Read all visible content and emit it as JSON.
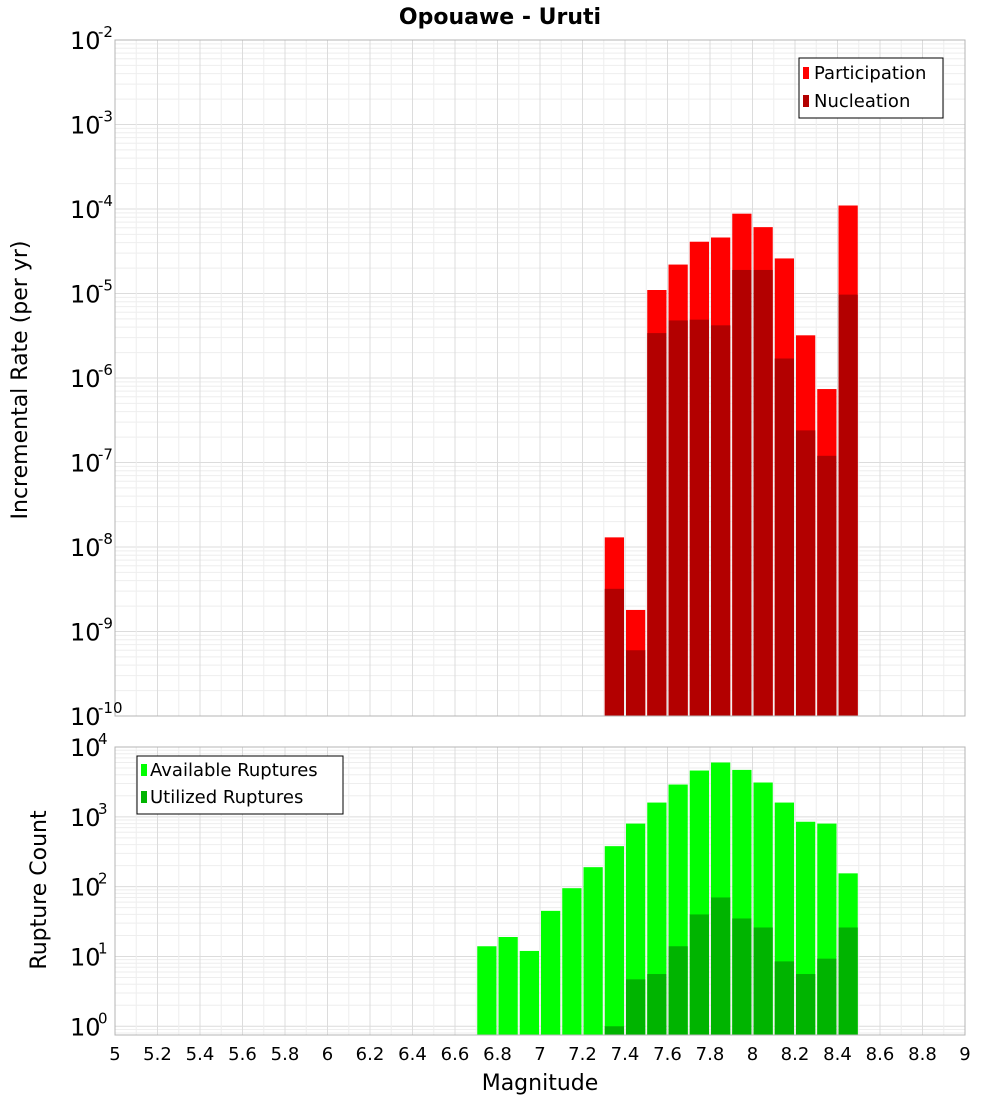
{
  "chart_data": [
    {
      "type": "bar",
      "title": "Opouawe - Uruti",
      "xlabel": "Magnitude",
      "ylabel": "Incremental Rate (per yr)",
      "yscale": "log",
      "ylim": [
        1e-10,
        0.01
      ],
      "xlim": [
        5,
        9
      ],
      "y_tick_exponents": [
        "-10",
        "-9",
        "-8",
        "-7",
        "-6",
        "-5",
        "-4",
        "-3",
        "-2"
      ],
      "legend_position": "top-right",
      "bar_width": 0.1,
      "x": [
        7.35,
        7.45,
        7.55,
        7.65,
        7.75,
        7.85,
        7.95,
        8.05,
        8.15,
        8.25,
        8.35,
        8.45
      ],
      "series": [
        {
          "name": "Participation",
          "color": "#ff0000",
          "values": [
            1.3e-08,
            1.8e-09,
            1.1e-05,
            2.2e-05,
            4.1e-05,
            4.6e-05,
            8.8e-05,
            6.1e-05,
            2.6e-05,
            3.2e-06,
            7.4e-07,
            0.00011
          ]
        },
        {
          "name": "Nucleation",
          "color": "#b30000",
          "values": [
            3.2e-09,
            6e-10,
            3.4e-06,
            4.8e-06,
            4.9e-06,
            4.2e-06,
            1.9e-05,
            1.9e-05,
            1.7e-06,
            2.4e-07,
            1.2e-07,
            9.7e-06
          ]
        }
      ]
    },
    {
      "type": "bar",
      "xlabel": "Magnitude",
      "ylabel": "Rupture Count",
      "yscale": "log",
      "ylim": [
        0.75,
        10000
      ],
      "xlim": [
        5,
        9
      ],
      "x_ticks": [
        "5",
        "5.2",
        "5.4",
        "5.6",
        "5.8",
        "6",
        "6.2",
        "6.4",
        "6.6",
        "6.8",
        "7",
        "7.2",
        "7.4",
        "7.6",
        "7.8",
        "8",
        "8.2",
        "8.4",
        "8.6",
        "8.8",
        "9"
      ],
      "y_tick_exponents": [
        "0",
        "1",
        "2",
        "3",
        "4"
      ],
      "legend_position": "top-left",
      "bar_width": 0.1,
      "x": [
        6.75,
        6.85,
        6.95,
        7.05,
        7.15,
        7.25,
        7.35,
        7.45,
        7.55,
        7.65,
        7.75,
        7.85,
        7.95,
        8.05,
        8.15,
        8.25,
        8.35,
        8.45
      ],
      "series": [
        {
          "name": "Available Ruptures",
          "color": "#00ff00",
          "values": [
            14,
            19,
            12,
            45,
            95,
            190,
            380,
            800,
            1600,
            2900,
            4600,
            6000,
            4700,
            3100,
            1600,
            850,
            800,
            155
          ]
        },
        {
          "name": "Utilized Ruptures",
          "color": "#00b400",
          "values": [
            0,
            0,
            0,
            0,
            0,
            0,
            1,
            4.7,
            5.6,
            14,
            40,
            70,
            35,
            26,
            8.5,
            5.6,
            9.3,
            26
          ]
        }
      ]
    }
  ]
}
